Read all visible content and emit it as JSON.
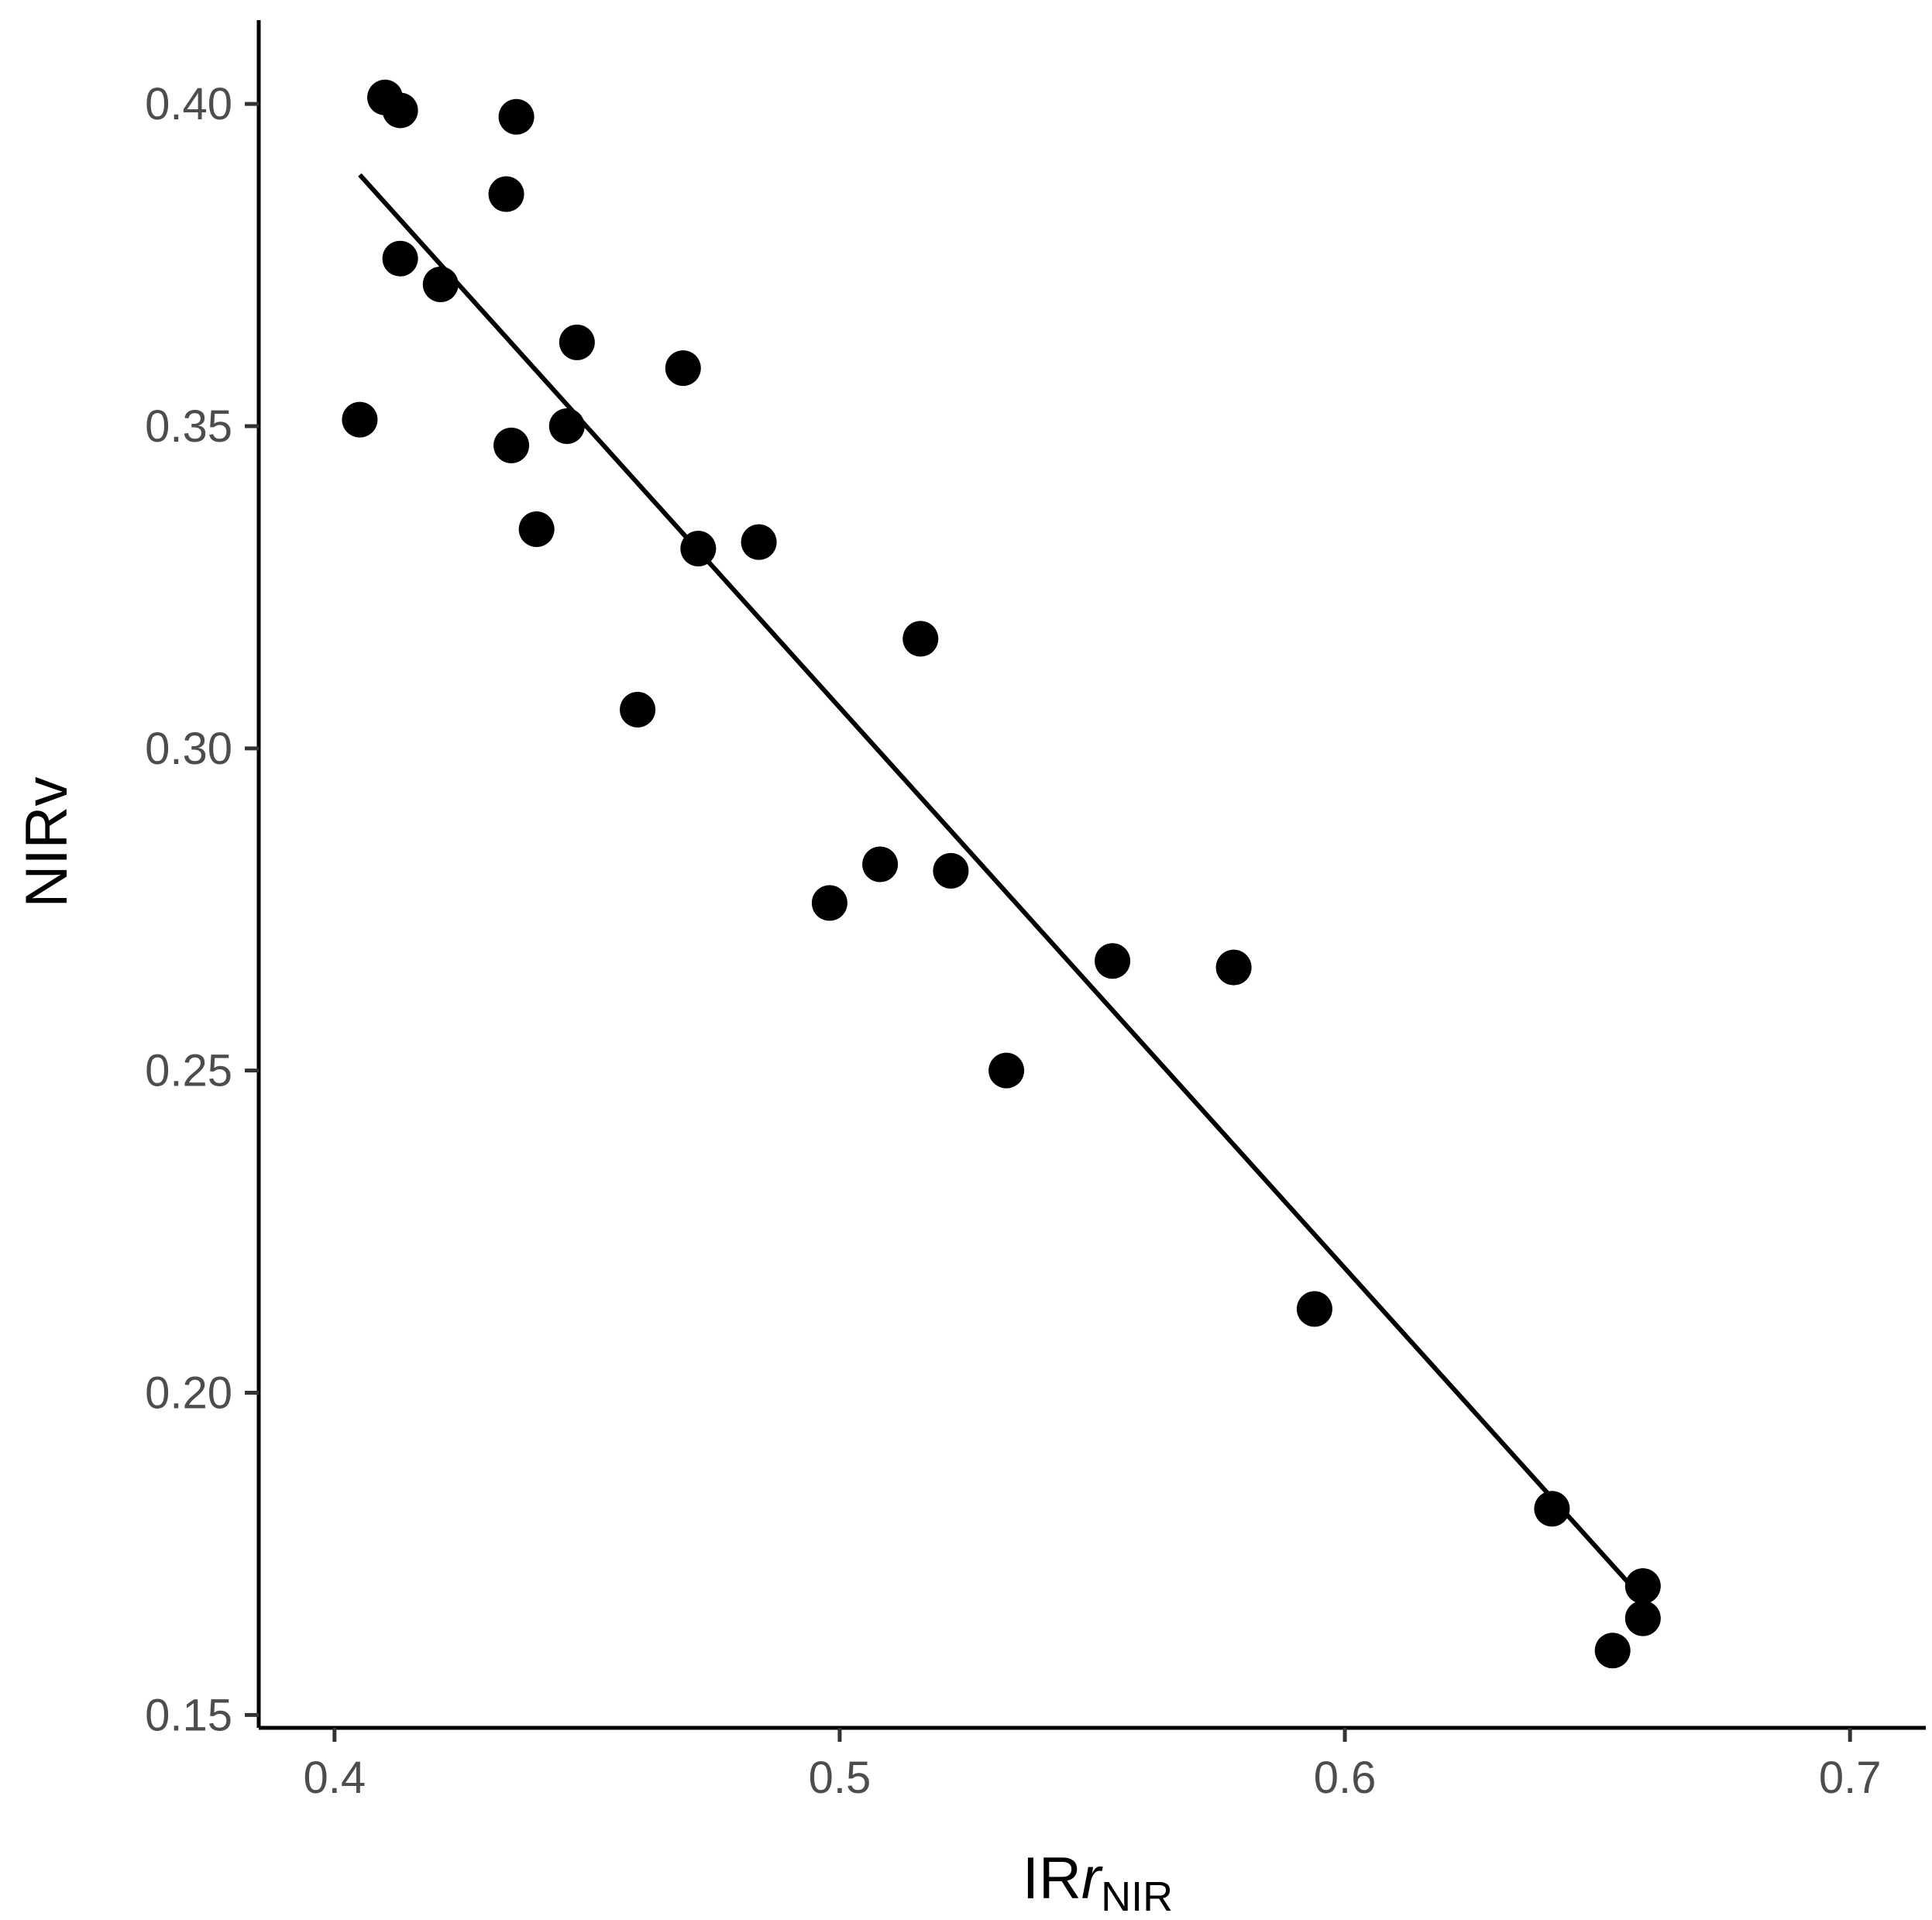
{
  "chart_data": {
    "type": "scatter",
    "title": "",
    "xlabel": {
      "main": "IR",
      "italic": "r",
      "subscript": "NIR"
    },
    "ylabel": "NIRv",
    "xlim": [
      0.385,
      0.715
    ],
    "ylim": [
      0.148,
      0.413
    ],
    "x_ticks": [
      0.4,
      0.5,
      0.6,
      0.7
    ],
    "x_tick_labels": [
      "0.4",
      "0.5",
      "0.6",
      "0.7"
    ],
    "y_ticks": [
      0.15,
      0.2,
      0.25,
      0.3,
      0.35,
      0.4
    ],
    "y_tick_labels": [
      "0.15",
      "0.20",
      "0.25",
      "0.30",
      "0.35",
      "0.40"
    ],
    "grid": false,
    "legend": "none",
    "point_color": "#000000",
    "line_color": "#000000",
    "points": [
      {
        "x": 0.405,
        "y": 0.351
      },
      {
        "x": 0.41,
        "y": 0.401
      },
      {
        "x": 0.413,
        "y": 0.399
      },
      {
        "x": 0.413,
        "y": 0.376
      },
      {
        "x": 0.421,
        "y": 0.372
      },
      {
        "x": 0.434,
        "y": 0.386
      },
      {
        "x": 0.435,
        "y": 0.347
      },
      {
        "x": 0.436,
        "y": 0.398
      },
      {
        "x": 0.44,
        "y": 0.334
      },
      {
        "x": 0.446,
        "y": 0.35
      },
      {
        "x": 0.448,
        "y": 0.363
      },
      {
        "x": 0.469,
        "y": 0.359
      },
      {
        "x": 0.472,
        "y": 0.331
      },
      {
        "x": 0.484,
        "y": 0.332
      },
      {
        "x": 0.46,
        "y": 0.306
      },
      {
        "x": 0.516,
        "y": 0.317
      },
      {
        "x": 0.498,
        "y": 0.276
      },
      {
        "x": 0.508,
        "y": 0.282
      },
      {
        "x": 0.522,
        "y": 0.281
      },
      {
        "x": 0.533,
        "y": 0.25
      },
      {
        "x": 0.554,
        "y": 0.267
      },
      {
        "x": 0.578,
        "y": 0.266
      },
      {
        "x": 0.594,
        "y": 0.213
      },
      {
        "x": 0.641,
        "y": 0.182
      },
      {
        "x": 0.653,
        "y": 0.16
      },
      {
        "x": 0.659,
        "y": 0.17
      },
      {
        "x": 0.659,
        "y": 0.165
      }
    ],
    "fit_line": {
      "type": "linear",
      "x": [
        0.405,
        0.659
      ],
      "y": [
        0.389,
        0.168
      ]
    }
  }
}
